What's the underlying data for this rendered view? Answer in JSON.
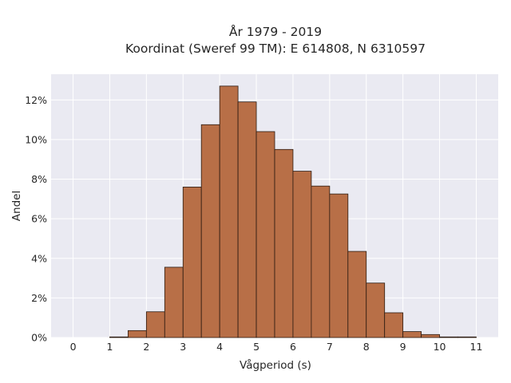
{
  "chart_data": {
    "type": "bar",
    "title": "År 1979 - 2019",
    "subtitle": "Koordinat (Sweref 99 TM): E 614808, N 6310597",
    "xlabel": "Vågperiod (s)",
    "ylabel": "Andel",
    "xlim": [
      -0.6,
      11.6
    ],
    "ylim": [
      0,
      13.3
    ],
    "x_ticks": [
      0,
      1,
      2,
      3,
      4,
      5,
      6,
      7,
      8,
      9,
      10,
      11
    ],
    "x_tick_labels": [
      "0",
      "1",
      "2",
      "3",
      "4",
      "5",
      "6",
      "7",
      "8",
      "9",
      "10",
      "11"
    ],
    "y_ticks": [
      0,
      2,
      4,
      6,
      8,
      10,
      12
    ],
    "y_tick_labels": [
      "0%",
      "2%",
      "4%",
      "6%",
      "8%",
      "10%",
      "12%"
    ],
    "bin_width": 0.5,
    "bins": [
      {
        "start": 1.0,
        "value": 0.03
      },
      {
        "start": 1.5,
        "value": 0.35
      },
      {
        "start": 2.0,
        "value": 1.3
      },
      {
        "start": 2.5,
        "value": 3.55
      },
      {
        "start": 3.0,
        "value": 7.6
      },
      {
        "start": 3.5,
        "value": 10.75
      },
      {
        "start": 4.0,
        "value": 12.7
      },
      {
        "start": 4.5,
        "value": 11.9
      },
      {
        "start": 5.0,
        "value": 10.4
      },
      {
        "start": 5.5,
        "value": 9.5
      },
      {
        "start": 6.0,
        "value": 8.4
      },
      {
        "start": 6.5,
        "value": 7.65
      },
      {
        "start": 7.0,
        "value": 7.25
      },
      {
        "start": 7.5,
        "value": 4.35
      },
      {
        "start": 8.0,
        "value": 2.75
      },
      {
        "start": 8.5,
        "value": 1.25
      },
      {
        "start": 9.0,
        "value": 0.3
      },
      {
        "start": 9.5,
        "value": 0.15
      },
      {
        "start": 10.0,
        "value": 0.03
      },
      {
        "start": 10.5,
        "value": 0.03
      }
    ],
    "grid": true,
    "colors": {
      "bar_fill": "#b86f47",
      "plot_background": "#eaeaf2",
      "grid": "#ffffff"
    }
  }
}
